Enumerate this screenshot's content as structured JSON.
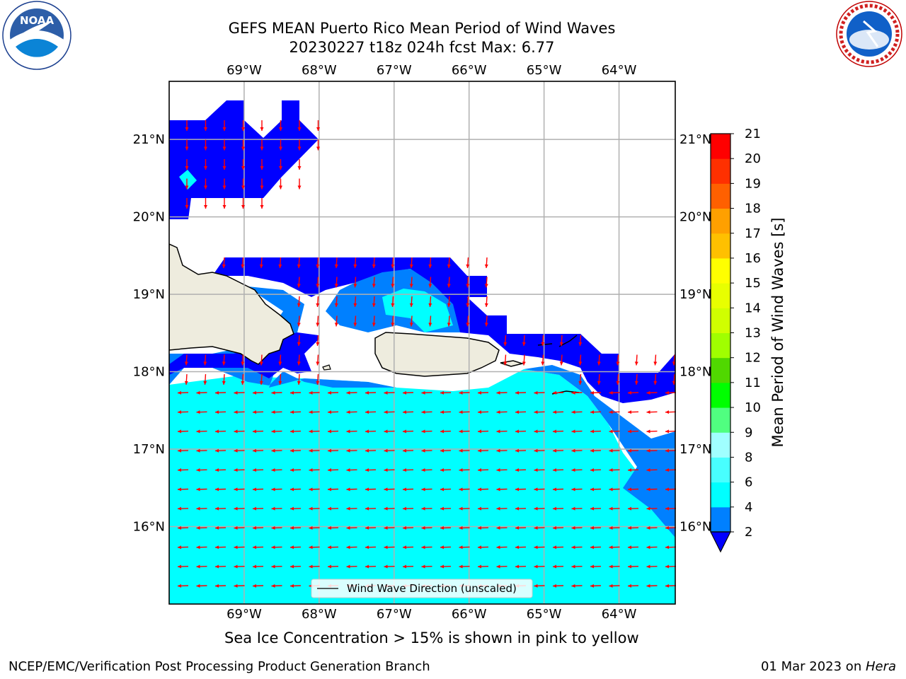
{
  "title": {
    "line1": "GEFS MEAN Puerto Rico Mean Period of Wind Waves",
    "line2": "20230227 t18z 024h fcst   Max: 6.77"
  },
  "logos": {
    "left": "NOAA",
    "right": "NATIONAL WEATHER SERVICE"
  },
  "map": {
    "lon_labels": [
      "69°W",
      "68°W",
      "67°W",
      "66°W",
      "65°W",
      "64°W"
    ],
    "lon_values": [
      -69,
      -68,
      -67,
      -66,
      -65,
      -64
    ],
    "lat_labels": [
      "21°N",
      "20°N",
      "19°N",
      "18°N",
      "17°N",
      "16°N"
    ],
    "lat_values": [
      21,
      20,
      19,
      18,
      17,
      16
    ],
    "extent": {
      "lon_min": -70,
      "lon_max": -63.25,
      "lat_min": 15,
      "lat_max": 21.75
    },
    "legend_label": "Wind Wave Direction (unscaled)",
    "colors": {
      "land": "#eeecde",
      "band_2_4": "#0000ff",
      "band_4_6": "#0080ff",
      "band_6_8": "#00ffff",
      "arrow": "#ff0000",
      "grid": "#b0b0b0"
    }
  },
  "colorbar": {
    "label": "Mean Period of Wind Waves [s]",
    "ticks": [
      "2",
      "4",
      "6",
      "8",
      "9",
      "10",
      "11",
      "12",
      "13",
      "14",
      "15",
      "16",
      "17",
      "18",
      "19",
      "20",
      "21"
    ],
    "colors": [
      "#0000ff",
      "#0080ff",
      "#00ffff",
      "#48ffff",
      "#a0ffff",
      "#50ff80",
      "#00ff00",
      "#50d800",
      "#a0ff00",
      "#d0ff00",
      "#e8ff00",
      "#ffff00",
      "#ffc000",
      "#ffa000",
      "#ff6000",
      "#ff3000",
      "#ff0000"
    ]
  },
  "caption": "Sea Ice Concentration > 15% is shown in pink to yellow",
  "footer": {
    "left": "NCEP/EMC/Verification Post Processing Product Generation Branch",
    "right_prefix": "01 Mar 2023 on ",
    "right_italic": "Hera"
  }
}
